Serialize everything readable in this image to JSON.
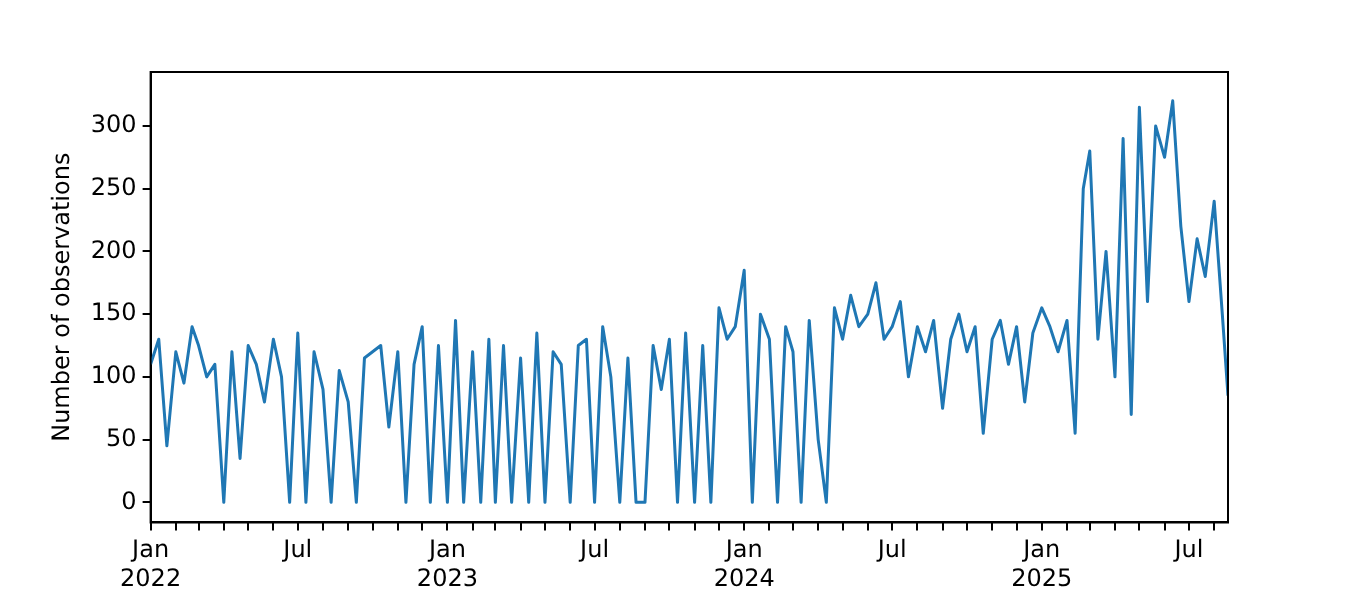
{
  "chart_data": {
    "type": "line",
    "ylabel": "Number of observations",
    "x": [
      "2022-01-01",
      "2022-01-11",
      "2022-01-21",
      "2022-02-01",
      "2022-02-11",
      "2022-02-21",
      "2022-03-01",
      "2022-03-11",
      "2022-03-21",
      "2022-04-01",
      "2022-04-11",
      "2022-04-21",
      "2022-05-01",
      "2022-05-11",
      "2022-05-21",
      "2022-06-01",
      "2022-06-11",
      "2022-06-21",
      "2022-07-01",
      "2022-07-11",
      "2022-07-21",
      "2022-08-01",
      "2022-08-11",
      "2022-08-21",
      "2022-09-01",
      "2022-09-11",
      "2022-09-21",
      "2022-10-01",
      "2022-10-11",
      "2022-10-21",
      "2022-11-01",
      "2022-11-11",
      "2022-11-21",
      "2022-12-01",
      "2022-12-11",
      "2022-12-21",
      "2023-01-01",
      "2023-01-11",
      "2023-01-21",
      "2023-02-01",
      "2023-02-11",
      "2023-02-21",
      "2023-03-01",
      "2023-03-11",
      "2023-03-21",
      "2023-04-01",
      "2023-04-11",
      "2023-04-21",
      "2023-05-01",
      "2023-05-11",
      "2023-05-21",
      "2023-06-01",
      "2023-06-11",
      "2023-06-21",
      "2023-07-01",
      "2023-07-11",
      "2023-07-21",
      "2023-08-01",
      "2023-08-11",
      "2023-08-21",
      "2023-09-01",
      "2023-09-11",
      "2023-09-21",
      "2023-10-01",
      "2023-10-11",
      "2023-10-21",
      "2023-11-01",
      "2023-11-11",
      "2023-11-21",
      "2023-12-01",
      "2023-12-11",
      "2023-12-21",
      "2024-01-01",
      "2024-01-11",
      "2024-01-21",
      "2024-02-01",
      "2024-02-11",
      "2024-02-21",
      "2024-03-01",
      "2024-03-11",
      "2024-03-21",
      "2024-04-01",
      "2024-04-11",
      "2024-04-21",
      "2024-05-01",
      "2024-05-11",
      "2024-05-21",
      "2024-06-01",
      "2024-06-11",
      "2024-06-21",
      "2024-07-01",
      "2024-07-11",
      "2024-07-21",
      "2024-08-01",
      "2024-08-11",
      "2024-08-21",
      "2024-09-01",
      "2024-09-11",
      "2024-09-21",
      "2024-10-01",
      "2024-10-11",
      "2024-10-21",
      "2024-11-01",
      "2024-11-11",
      "2024-11-21",
      "2024-12-01",
      "2024-12-11",
      "2024-12-21",
      "2025-01-01",
      "2025-01-11",
      "2025-01-21",
      "2025-02-01",
      "2025-02-11",
      "2025-02-21",
      "2025-03-01",
      "2025-03-11",
      "2025-03-21",
      "2025-04-01",
      "2025-04-11",
      "2025-04-21",
      "2025-05-01",
      "2025-05-11",
      "2025-05-21",
      "2025-06-01",
      "2025-06-11",
      "2025-06-21",
      "2025-07-01",
      "2025-07-11",
      "2025-07-21",
      "2025-08-01",
      "2025-08-11",
      "2025-08-18"
    ],
    "series": [
      {
        "color": "#1f77b4",
        "values": [
          110,
          130,
          45,
          120,
          95,
          140,
          125,
          100,
          110,
          0,
          120,
          35,
          125,
          110,
          80,
          130,
          100,
          0,
          135,
          0,
          120,
          90,
          0,
          105,
          80,
          0,
          115,
          120,
          125,
          60,
          120,
          0,
          110,
          140,
          0,
          125,
          0,
          145,
          0,
          120,
          0,
          130,
          0,
          125,
          0,
          115,
          0,
          135,
          0,
          120,
          110,
          0,
          125,
          130,
          0,
          140,
          100,
          0,
          115,
          0,
          0,
          125,
          90,
          130,
          0,
          135,
          0,
          125,
          0,
          155,
          130,
          140,
          185,
          0,
          150,
          130,
          0,
          140,
          120,
          0,
          145,
          50,
          0,
          155,
          130,
          165,
          140,
          150,
          175,
          130,
          140,
          160,
          100,
          140,
          120,
          145,
          75,
          130,
          150,
          120,
          140,
          55,
          130,
          145,
          110,
          140,
          80,
          135,
          155,
          140,
          120,
          145,
          55,
          250,
          280,
          130,
          200,
          100,
          290,
          70,
          315,
          160,
          300,
          275,
          320,
          220,
          160,
          210,
          180,
          240,
          150,
          85
        ]
      }
    ],
    "xlim": [
      "2022-01-01",
      "2025-08-18"
    ],
    "xticks": [
      {
        "value": "2022-01-01",
        "label": "Jan\n2022"
      },
      {
        "value": "2022-02-01",
        "label": null
      },
      {
        "value": "2022-03-01",
        "label": null
      },
      {
        "value": "2022-04-01",
        "label": null
      },
      {
        "value": "2022-05-01",
        "label": null
      },
      {
        "value": "2022-06-01",
        "label": null
      },
      {
        "value": "2022-07-01",
        "label": "Jul"
      },
      {
        "value": "2022-08-01",
        "label": null
      },
      {
        "value": "2022-09-01",
        "label": null
      },
      {
        "value": "2022-10-01",
        "label": null
      },
      {
        "value": "2022-11-01",
        "label": null
      },
      {
        "value": "2022-12-01",
        "label": null
      },
      {
        "value": "2023-01-01",
        "label": "Jan\n2023"
      },
      {
        "value": "2023-02-01",
        "label": null
      },
      {
        "value": "2023-03-01",
        "label": null
      },
      {
        "value": "2023-04-01",
        "label": null
      },
      {
        "value": "2023-05-01",
        "label": null
      },
      {
        "value": "2023-06-01",
        "label": null
      },
      {
        "value": "2023-07-01",
        "label": "Jul"
      },
      {
        "value": "2023-08-01",
        "label": null
      },
      {
        "value": "2023-09-01",
        "label": null
      },
      {
        "value": "2023-10-01",
        "label": null
      },
      {
        "value": "2023-11-01",
        "label": null
      },
      {
        "value": "2023-12-01",
        "label": null
      },
      {
        "value": "2024-01-01",
        "label": "Jan\n2024"
      },
      {
        "value": "2024-02-01",
        "label": null
      },
      {
        "value": "2024-03-01",
        "label": null
      },
      {
        "value": "2024-04-01",
        "label": null
      },
      {
        "value": "2024-05-01",
        "label": null
      },
      {
        "value": "2024-06-01",
        "label": null
      },
      {
        "value": "2024-07-01",
        "label": "Jul"
      },
      {
        "value": "2024-08-01",
        "label": null
      },
      {
        "value": "2024-09-01",
        "label": null
      },
      {
        "value": "2024-10-01",
        "label": null
      },
      {
        "value": "2024-11-01",
        "label": null
      },
      {
        "value": "2024-12-01",
        "label": null
      },
      {
        "value": "2025-01-01",
        "label": "Jan\n2025"
      },
      {
        "value": "2025-02-01",
        "label": null
      },
      {
        "value": "2025-03-01",
        "label": null
      },
      {
        "value": "2025-04-01",
        "label": null
      },
      {
        "value": "2025-05-01",
        "label": null
      },
      {
        "value": "2025-06-01",
        "label": null
      },
      {
        "value": "2025-07-01",
        "label": "Jul"
      },
      {
        "value": "2025-08-01",
        "label": null
      }
    ],
    "ylim": [
      -16,
      343
    ],
    "yticks": [
      0,
      50,
      100,
      150,
      200,
      250,
      300
    ],
    "grid": false
  }
}
